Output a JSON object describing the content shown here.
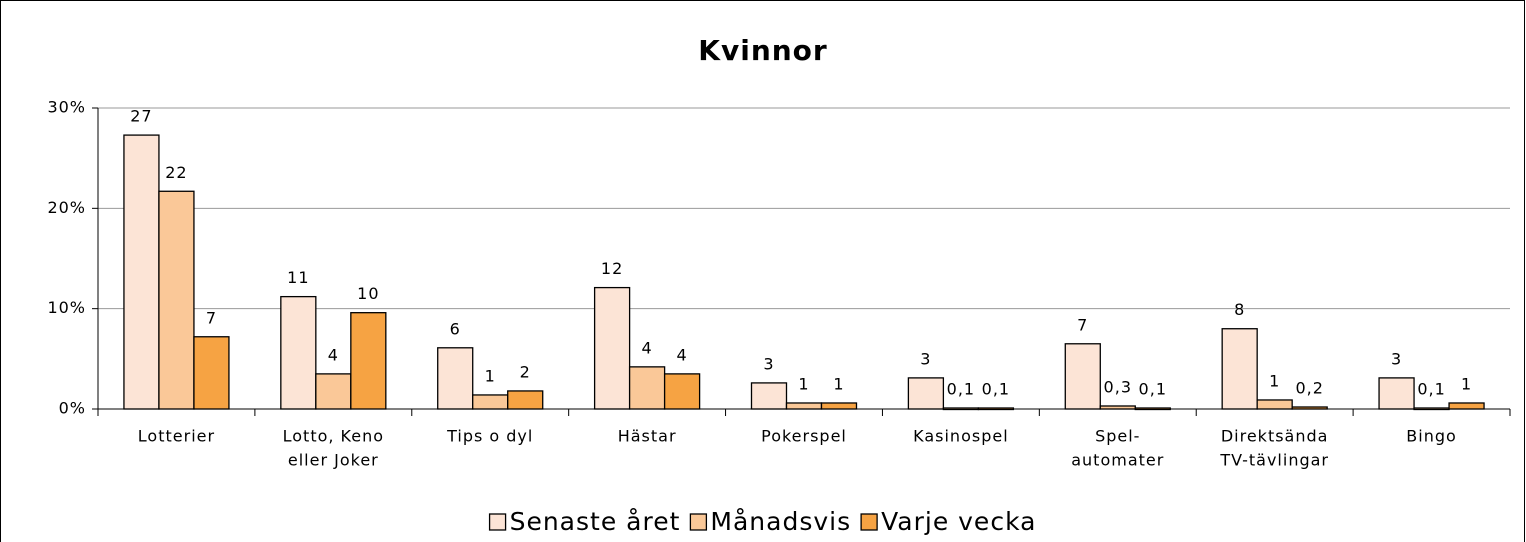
{
  "chart_data": {
    "type": "bar",
    "title": "Kvinnor",
    "categories": [
      [
        "Lotterier"
      ],
      [
        "Lotto, Keno",
        "eller Joker"
      ],
      [
        "Tips o dyl"
      ],
      [
        "Hästar"
      ],
      [
        "Pokerspel"
      ],
      [
        "Kasinospel"
      ],
      [
        "Spel-",
        "automater"
      ],
      [
        "Direktsända",
        "TV-tävlingar"
      ],
      [
        "Bingo"
      ]
    ],
    "series": [
      {
        "name": "Senaste året",
        "color": "#fce4d6",
        "values": [
          27.3,
          11.2,
          6.1,
          12.1,
          2.6,
          3.1,
          6.5,
          8.0,
          3.1
        ],
        "value_labels": [
          "27",
          "11",
          "6",
          "12",
          "3",
          "3",
          "7",
          "8",
          "3"
        ]
      },
      {
        "name": "Månadsvis",
        "color": "#fac898",
        "values": [
          21.7,
          3.5,
          1.4,
          4.2,
          0.6,
          0.1,
          0.3,
          0.9,
          0.1
        ],
        "value_labels": [
          "22",
          "4",
          "1",
          "4",
          "1",
          "0,1",
          "0,3",
          "1",
          "0,1"
        ]
      },
      {
        "name": "Varje vecka",
        "color": "#f6a343",
        "values": [
          7.2,
          9.6,
          1.8,
          3.5,
          0.6,
          0.1,
          0.1,
          0.2,
          0.6
        ],
        "value_labels": [
          "7",
          "10",
          "2",
          "4",
          "1",
          "0,1",
          "0,1",
          "0,2",
          "1"
        ]
      }
    ],
    "ylim": [
      0,
      30
    ],
    "yticks": [
      {
        "value": 0,
        "label": "0%"
      },
      {
        "value": 10,
        "label": "10%"
      },
      {
        "value": 20,
        "label": "20%"
      },
      {
        "value": 30,
        "label": "30%"
      }
    ],
    "grid": true,
    "legend": "bottom"
  }
}
